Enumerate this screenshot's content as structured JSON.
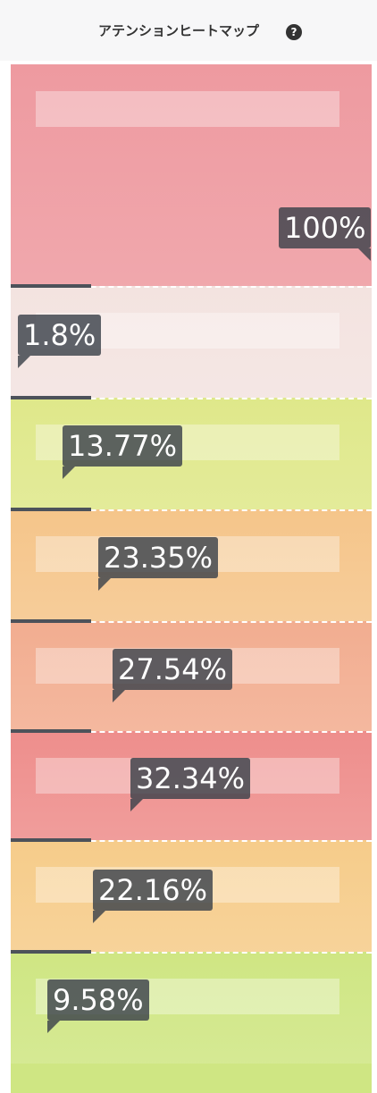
{
  "header": {
    "title": "アテンションヒートマップ",
    "help_icon": "?"
  },
  "sections": [
    {
      "label": "100%",
      "color": "#ee9aa0"
    },
    {
      "label": "1.8%",
      "color": "#f3e3e0"
    },
    {
      "label": "13.77%",
      "color": "#dfe88a"
    },
    {
      "label": "23.35%",
      "color": "#f5c58a"
    },
    {
      "label": "27.54%",
      "color": "#f2ad90"
    },
    {
      "label": "32.34%",
      "color": "#ee8e8c"
    },
    {
      "label": "22.16%",
      "color": "#f6cc8a"
    },
    {
      "label": "9.58%",
      "color": "#cfe683"
    }
  ]
}
